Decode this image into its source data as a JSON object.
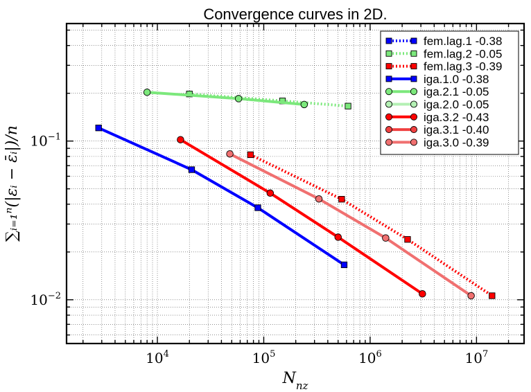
{
  "chart_data": {
    "type": "line",
    "title": "Convergence curves in 2D.",
    "xlabel_base": "N",
    "xlabel_sub": "nz",
    "ylabel": "∑ᵢ₌₁ⁿ(|εᵢ − ε̄ᵢ|)/n",
    "xscale": "log",
    "yscale": "log",
    "xlim": [
      1400,
      28000000
    ],
    "ylim": [
      0.0053,
      0.55
    ],
    "grid": true,
    "legend_position": "top-right",
    "x_ticks": [
      {
        "value": 10000,
        "base": "10",
        "exp": "4"
      },
      {
        "value": 100000,
        "base": "10",
        "exp": "5"
      },
      {
        "value": 1000000,
        "base": "10",
        "exp": "6"
      },
      {
        "value": 10000000,
        "base": "10",
        "exp": "7"
      }
    ],
    "y_ticks": [
      {
        "value": 0.1,
        "base": "10",
        "exp": "−1"
      },
      {
        "value": 0.01,
        "base": "10",
        "exp": "−2"
      }
    ],
    "series": [
      {
        "name": "fem.lag.1 -0.38",
        "color": "#0000ff",
        "marker": "square",
        "linestyle": "dotted",
        "alpha": 1.0,
        "x": [],
        "y": []
      },
      {
        "name": "fem.lag.2 -0.05",
        "color": "#7ce87c",
        "marker": "square",
        "linestyle": "dotted",
        "alpha": 1.0,
        "x": [
          20000,
          150000,
          620000
        ],
        "y": [
          0.198,
          0.179,
          0.166
        ]
      },
      {
        "name": "fem.lag.3 -0.39",
        "color": "#ff0000",
        "marker": "square",
        "linestyle": "dotted",
        "alpha": 1.0,
        "x": [
          75000,
          540000,
          2250000,
          14000000
        ],
        "y": [
          0.082,
          0.043,
          0.024,
          0.0106
        ]
      },
      {
        "name": "iga.1.0 -0.38",
        "color": "#0000ff",
        "marker": "square",
        "linestyle": "solid",
        "alpha": 1.0,
        "x": [
          2800,
          21000,
          88000,
          570000
        ],
        "y": [
          0.121,
          0.066,
          0.038,
          0.0166
        ]
      },
      {
        "name": "iga.2.1 -0.05",
        "color": "#7ce87c",
        "marker": "circle",
        "linestyle": "solid",
        "alpha": 1.0,
        "x": [
          8000,
          58000,
          240000
        ],
        "y": [
          0.203,
          0.185,
          0.17
        ]
      },
      {
        "name": "iga.2.0 -0.05",
        "color": "#b4f0b4",
        "marker": "circle",
        "linestyle": "solid",
        "alpha": 1.0,
        "x": [],
        "y": []
      },
      {
        "name": "iga.3.2 -0.43",
        "color": "#ff0000",
        "marker": "circle",
        "linestyle": "solid",
        "alpha": 1.0,
        "x": [
          16500,
          115000,
          500000,
          3100000
        ],
        "y": [
          0.102,
          0.047,
          0.0248,
          0.0109
        ]
      },
      {
        "name": "iga.3.1 -0.40",
        "color": "#f04040",
        "marker": "circle",
        "linestyle": "solid",
        "alpha": 1.0,
        "x": [],
        "y": []
      },
      {
        "name": "iga.3.0 -0.39",
        "color": "#f07070",
        "marker": "circle",
        "linestyle": "solid",
        "alpha": 1.0,
        "x": [
          48000,
          330000,
          1400000,
          8900000
        ],
        "y": [
          0.083,
          0.0432,
          0.0245,
          0.0106
        ]
      }
    ]
  }
}
